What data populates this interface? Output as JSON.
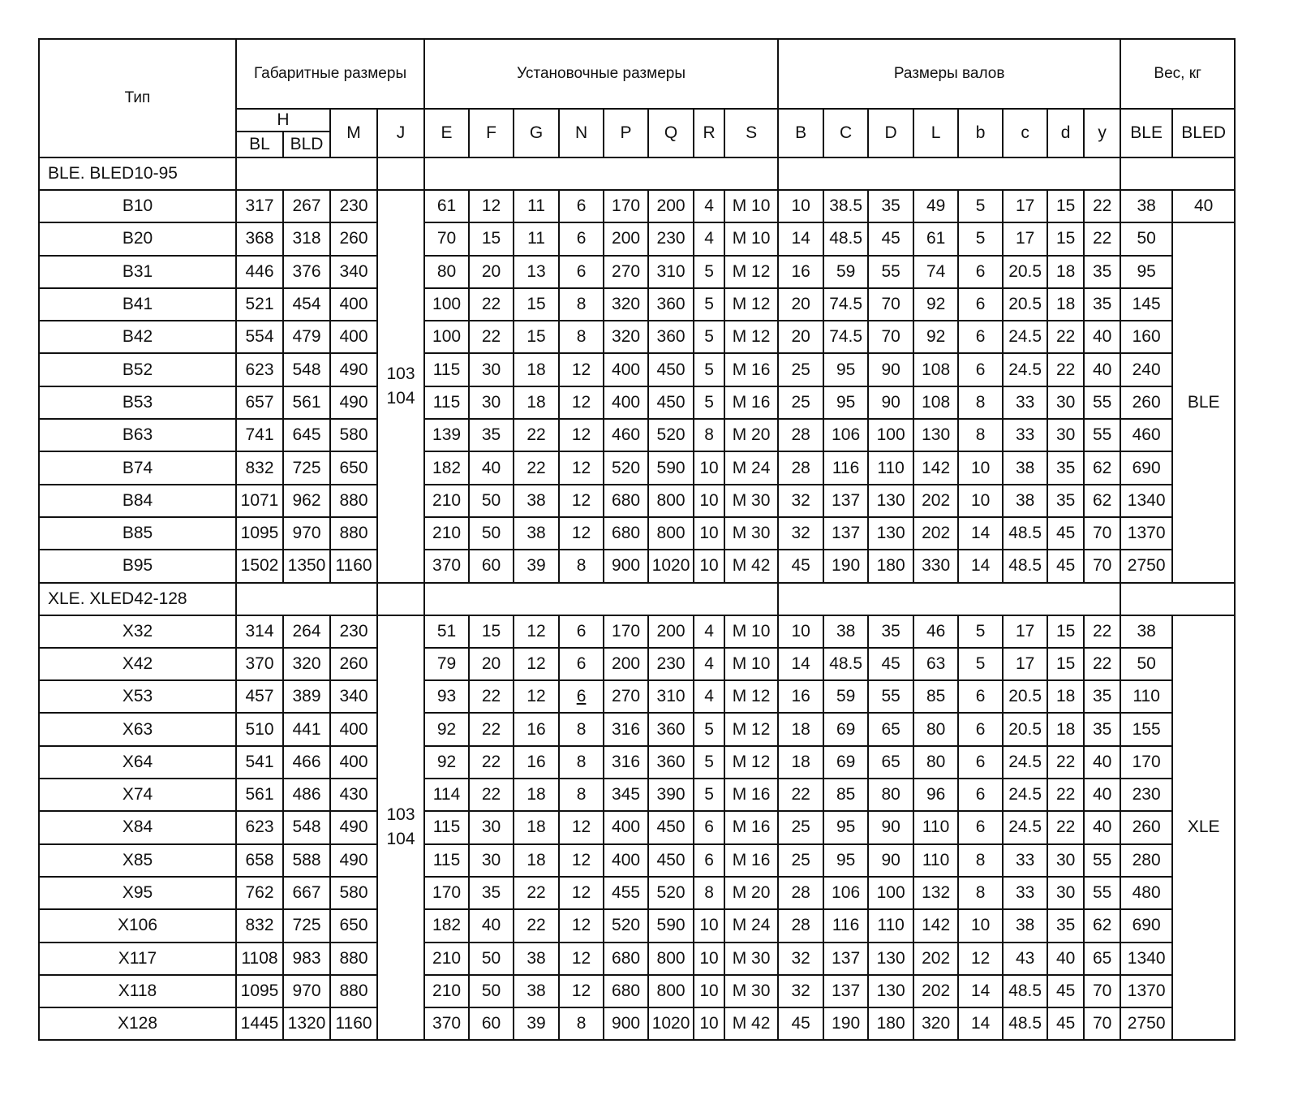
{
  "header": {
    "type": "Тип",
    "groups": [
      "Габаритные размеры",
      "Установочные размеры",
      "Размеры валов",
      "Вес, кг"
    ],
    "h": "H",
    "cols": [
      "BL",
      "BLD",
      "M",
      "J",
      "E",
      "F",
      "G",
      "N",
      "P",
      "Q",
      "R",
      "S",
      "B",
      "C",
      "D",
      "L",
      "b",
      "c",
      "d",
      "y",
      "BLE",
      "BLED"
    ]
  },
  "sections": [
    {
      "label": "BLE. BLED10-95",
      "j_value": [
        "103",
        "104"
      ],
      "bled_first": "40",
      "bled_merged": "BLE",
      "rows": [
        [
          "B10",
          "317",
          "267",
          "230",
          "61",
          "12",
          "11",
          "6",
          "170",
          "200",
          "4",
          "M 10",
          "10",
          "38.5",
          "35",
          "49",
          "5",
          "17",
          "15",
          "22",
          "38"
        ],
        [
          "B20",
          "368",
          "318",
          "260",
          "70",
          "15",
          "11",
          "6",
          "200",
          "230",
          "4",
          "M 10",
          "14",
          "48.5",
          "45",
          "61",
          "5",
          "17",
          "15",
          "22",
          "50"
        ],
        [
          "B31",
          "446",
          "376",
          "340",
          "80",
          "20",
          "13",
          "6",
          "270",
          "310",
          "5",
          "M 12",
          "16",
          "59",
          "55",
          "74",
          "6",
          "20.5",
          "18",
          "35",
          "95"
        ],
        [
          "B41",
          "521",
          "454",
          "400",
          "100",
          "22",
          "15",
          "8",
          "320",
          "360",
          "5",
          "M 12",
          "20",
          "74.5",
          "70",
          "92",
          "6",
          "20.5",
          "18",
          "35",
          "145"
        ],
        [
          "B42",
          "554",
          "479",
          "400",
          "100",
          "22",
          "15",
          "8",
          "320",
          "360",
          "5",
          "M 12",
          "20",
          "74.5",
          "70",
          "92",
          "6",
          "24.5",
          "22",
          "40",
          "160"
        ],
        [
          "B52",
          "623",
          "548",
          "490",
          "115",
          "30",
          "18",
          "12",
          "400",
          "450",
          "5",
          "M 16",
          "25",
          "95",
          "90",
          "108",
          "6",
          "24.5",
          "22",
          "40",
          "240"
        ],
        [
          "B53",
          "657",
          "561",
          "490",
          "115",
          "30",
          "18",
          "12",
          "400",
          "450",
          "5",
          "M 16",
          "25",
          "95",
          "90",
          "108",
          "8",
          "33",
          "30",
          "55",
          "260"
        ],
        [
          "B63",
          "741",
          "645",
          "580",
          "139",
          "35",
          "22",
          "12",
          "460",
          "520",
          "8",
          "M 20",
          "28",
          "106",
          "100",
          "130",
          "8",
          "33",
          "30",
          "55",
          "460"
        ],
        [
          "B74",
          "832",
          "725",
          "650",
          "182",
          "40",
          "22",
          "12",
          "520",
          "590",
          "10",
          "M 24",
          "28",
          "116",
          "110",
          "142",
          "10",
          "38",
          "35",
          "62",
          "690"
        ],
        [
          "B84",
          "1071",
          "962",
          "880",
          "210",
          "50",
          "38",
          "12",
          "680",
          "800",
          "10",
          "M 30",
          "32",
          "137",
          "130",
          "202",
          "10",
          "38",
          "35",
          "62",
          "1340"
        ],
        [
          "B85",
          "1095",
          "970",
          "880",
          "210",
          "50",
          "38",
          "12",
          "680",
          "800",
          "10",
          "M 30",
          "32",
          "137",
          "130",
          "202",
          "14",
          "48.5",
          "45",
          "70",
          "1370"
        ],
        [
          "B95",
          "1502",
          "1350",
          "1160",
          "370",
          "60",
          "39",
          "8",
          "900",
          "1020",
          "10",
          "M 42",
          "45",
          "190",
          "180",
          "330",
          "14",
          "48.5",
          "45",
          "70",
          "2750"
        ]
      ]
    },
    {
      "label": "XLE. XLED42-128",
      "j_value": [
        "103",
        "104"
      ],
      "bled_merged": "XLE",
      "rows": [
        [
          "X32",
          "314",
          "264",
          "230",
          "51",
          "15",
          "12",
          "6",
          "170",
          "200",
          "4",
          "M 10",
          "10",
          "38",
          "35",
          "46",
          "5",
          "17",
          "15",
          "22",
          "38"
        ],
        [
          "X42",
          "370",
          "320",
          "260",
          "79",
          "20",
          "12",
          "6",
          "200",
          "230",
          "4",
          "M 10",
          "14",
          "48.5",
          "45",
          "63",
          "5",
          "17",
          "15",
          "22",
          "50"
        ],
        [
          "X53",
          "457",
          "389",
          "340",
          "93",
          "22",
          "12",
          "6",
          "270",
          "310",
          "4",
          "M 12",
          "16",
          "59",
          "55",
          "85",
          "6",
          "20.5",
          "18",
          "35",
          "110"
        ],
        [
          "X63",
          "510",
          "441",
          "400",
          "92",
          "22",
          "16",
          "8",
          "316",
          "360",
          "5",
          "M 12",
          "18",
          "69",
          "65",
          "80",
          "6",
          "20.5",
          "18",
          "35",
          "155"
        ],
        [
          "X64",
          "541",
          "466",
          "400",
          "92",
          "22",
          "16",
          "8",
          "316",
          "360",
          "5",
          "M 12",
          "18",
          "69",
          "65",
          "80",
          "6",
          "24.5",
          "22",
          "40",
          "170"
        ],
        [
          "X74",
          "561",
          "486",
          "430",
          "114",
          "22",
          "18",
          "8",
          "345",
          "390",
          "5",
          "M 16",
          "22",
          "85",
          "80",
          "96",
          "6",
          "24.5",
          "22",
          "40",
          "230"
        ],
        [
          "X84",
          "623",
          "548",
          "490",
          "115",
          "30",
          "18",
          "12",
          "400",
          "450",
          "6",
          "M 16",
          "25",
          "95",
          "90",
          "110",
          "6",
          "24.5",
          "22",
          "40",
          "260"
        ],
        [
          "X85",
          "658",
          "588",
          "490",
          "115",
          "30",
          "18",
          "12",
          "400",
          "450",
          "6",
          "M 16",
          "25",
          "95",
          "90",
          "110",
          "8",
          "33",
          "30",
          "55",
          "280"
        ],
        [
          "X95",
          "762",
          "667",
          "580",
          "170",
          "35",
          "22",
          "12",
          "455",
          "520",
          "8",
          "M 20",
          "28",
          "106",
          "100",
          "132",
          "8",
          "33",
          "30",
          "55",
          "480"
        ],
        [
          "X106",
          "832",
          "725",
          "650",
          "182",
          "40",
          "22",
          "12",
          "520",
          "590",
          "10",
          "M 24",
          "28",
          "116",
          "110",
          "142",
          "10",
          "38",
          "35",
          "62",
          "690"
        ],
        [
          "X117",
          "1108",
          "983",
          "880",
          "210",
          "50",
          "38",
          "12",
          "680",
          "800",
          "10",
          "M 30",
          "32",
          "137",
          "130",
          "202",
          "12",
          "43",
          "40",
          "65",
          "1340"
        ],
        [
          "X118",
          "1095",
          "970",
          "880",
          "210",
          "50",
          "38",
          "12",
          "680",
          "800",
          "10",
          "M 30",
          "32",
          "137",
          "130",
          "202",
          "14",
          "48.5",
          "45",
          "70",
          "1370"
        ],
        [
          "X128",
          "1445",
          "1320",
          "1160",
          "370",
          "60",
          "39",
          "8",
          "900",
          "1020",
          "10",
          "M 42",
          "45",
          "190",
          "180",
          "320",
          "14",
          "48.5",
          "45",
          "70",
          "2750"
        ]
      ]
    }
  ]
}
